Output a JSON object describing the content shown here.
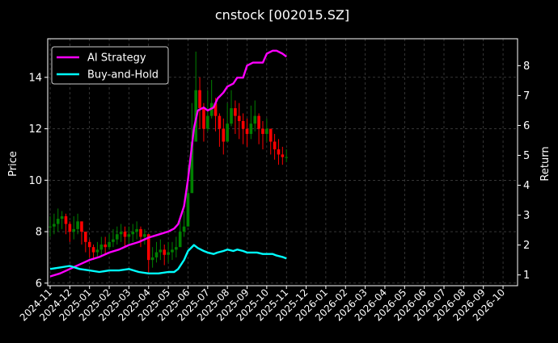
{
  "chart_data": {
    "type": "line",
    "title": "cnstock [002015.SZ]",
    "xlabel": "",
    "ylabel_left": "Price",
    "ylabel_right": "Return",
    "ylim_left": [
      5.9,
      15.5
    ],
    "ylim_right": [
      0.64,
      8.9
    ],
    "x_tick_labels": [
      "2024-11",
      "2024-12",
      "2025-01",
      "2025-02",
      "2025-03",
      "2025-04",
      "2025-05",
      "2025-06",
      "2025-07",
      "2025-08",
      "2025-09",
      "2025-10",
      "2025-11",
      "2025-12",
      "2026-01",
      "2026-02",
      "2026-03",
      "2026-04",
      "2026-05",
      "2026-06",
      "2026-07",
      "2026-08",
      "2026-09",
      "2026-10"
    ],
    "y_ticks_left": [
      6,
      8,
      10,
      12,
      14
    ],
    "y_ticks_right": [
      1,
      2,
      3,
      4,
      5,
      6,
      7,
      8
    ],
    "grid": true,
    "legend_placement": "top-left",
    "colors": {
      "background": "#000000",
      "ai_strategy": "#ff00ff",
      "buy_and_hold": "#00ffff",
      "candle_up": "#008000",
      "candle_down": "#ff0000",
      "grid": "#555555"
    },
    "candles": {
      "note_x": "month index (0 = 2024-11)",
      "x": [
        0.0,
        0.2,
        0.4,
        0.6,
        0.8,
        1.0,
        1.2,
        1.4,
        1.6,
        1.8,
        2.0,
        2.2,
        2.4,
        2.6,
        2.8,
        3.0,
        3.2,
        3.4,
        3.6,
        3.8,
        4.0,
        4.2,
        4.4,
        4.6,
        4.8,
        5.0,
        5.2,
        5.4,
        5.6,
        5.8,
        6.0,
        6.2,
        6.4,
        6.6,
        6.8,
        7.0,
        7.2,
        7.4,
        7.6,
        7.8,
        8.0,
        8.2,
        8.4,
        8.6,
        8.8,
        9.0,
        9.2,
        9.4,
        9.6,
        9.8,
        10.0,
        10.2,
        10.4,
        10.6,
        10.8,
        11.0,
        11.2,
        11.4,
        11.6,
        11.8,
        12.0
      ],
      "close": [
        8.2,
        8.3,
        8.5,
        8.6,
        8.3,
        8.0,
        8.1,
        8.4,
        8.0,
        7.6,
        7.4,
        7.2,
        7.3,
        7.5,
        7.4,
        7.6,
        7.7,
        7.9,
        8.0,
        7.8,
        7.9,
        8.0,
        8.1,
        7.8,
        7.9,
        6.9,
        7.0,
        7.2,
        7.3,
        7.1,
        7.2,
        7.3,
        7.4,
        8.0,
        8.2,
        9.5,
        11.5,
        13.5,
        12.8,
        12.0,
        12.5,
        13.0,
        12.5,
        12.0,
        11.5,
        12.2,
        12.8,
        12.5,
        12.3,
        12.0,
        11.8,
        12.2,
        12.5,
        12.0,
        11.8,
        12.0,
        11.5,
        11.2,
        11.0,
        10.9,
        10.9
      ],
      "high": [
        8.6,
        8.7,
        8.9,
        8.8,
        8.7,
        8.4,
        8.6,
        8.7,
        8.3,
        8.0,
        7.7,
        7.5,
        7.6,
        7.8,
        7.8,
        7.9,
        8.1,
        8.2,
        8.3,
        8.2,
        8.2,
        8.3,
        8.4,
        8.2,
        8.1,
        7.3,
        7.4,
        7.6,
        7.7,
        7.5,
        7.6,
        7.6,
        7.8,
        8.5,
        8.8,
        10.5,
        13.0,
        15.0,
        14.0,
        13.0,
        13.5,
        13.9,
        13.2,
        12.6,
        12.4,
        13.0,
        13.5,
        13.1,
        13.0,
        12.6,
        12.4,
        12.9,
        13.1,
        12.6,
        12.3,
        12.4,
        12.0,
        11.8,
        11.6,
        11.3,
        11.2
      ],
      "low": [
        7.8,
        7.9,
        8.0,
        8.1,
        7.9,
        7.6,
        7.7,
        7.9,
        7.5,
        7.2,
        7.0,
        6.9,
        7.0,
        7.1,
        7.1,
        7.3,
        7.4,
        7.5,
        7.6,
        7.4,
        7.5,
        7.6,
        7.7,
        7.4,
        7.5,
        6.4,
        6.6,
        6.8,
        6.9,
        6.7,
        6.8,
        6.9,
        7.0,
        7.6,
        7.8,
        8.9,
        10.8,
        12.6,
        12.0,
        11.5,
        11.9,
        12.4,
        11.9,
        11.3,
        11.0,
        11.6,
        12.1,
        11.8,
        11.6,
        11.4,
        11.3,
        11.6,
        11.9,
        11.4,
        11.2,
        11.5,
        11.0,
        10.8,
        10.6,
        10.6,
        10.7
      ]
    },
    "series": [
      {
        "name": "AI Strategy",
        "axis": "right",
        "x": [
          0.0,
          0.5,
          1.0,
          1.5,
          2.0,
          2.5,
          3.0,
          3.5,
          4.0,
          4.5,
          5.0,
          5.5,
          6.0,
          6.3,
          6.5,
          6.8,
          7.0,
          7.3,
          7.5,
          7.8,
          8.0,
          8.3,
          8.5,
          8.8,
          9.0,
          9.3,
          9.5,
          9.8,
          10.0,
          10.3,
          10.5,
          10.8,
          11.0,
          11.3,
          11.5,
          11.8,
          12.0
        ],
        "values": [
          0.95,
          1.05,
          1.2,
          1.35,
          1.5,
          1.6,
          1.75,
          1.85,
          2.0,
          2.1,
          2.25,
          2.35,
          2.45,
          2.55,
          2.7,
          3.3,
          4.2,
          5.9,
          6.5,
          6.6,
          6.5,
          6.6,
          6.9,
          7.1,
          7.3,
          7.4,
          7.6,
          7.6,
          8.0,
          8.1,
          8.1,
          8.1,
          8.4,
          8.5,
          8.5,
          8.4,
          8.3
        ]
      },
      {
        "name": "Buy-and-Hold",
        "axis": "right",
        "x": [
          0.0,
          0.5,
          1.0,
          1.5,
          2.0,
          2.5,
          3.0,
          3.5,
          4.0,
          4.5,
          5.0,
          5.5,
          6.0,
          6.3,
          6.5,
          6.8,
          7.0,
          7.3,
          7.5,
          7.8,
          8.0,
          8.3,
          8.5,
          8.8,
          9.0,
          9.3,
          9.5,
          9.8,
          10.0,
          10.3,
          10.5,
          10.8,
          11.0,
          11.3,
          11.5,
          11.8,
          12.0
        ],
        "values": [
          1.2,
          1.25,
          1.3,
          1.2,
          1.15,
          1.1,
          1.15,
          1.15,
          1.2,
          1.1,
          1.05,
          1.05,
          1.1,
          1.1,
          1.2,
          1.5,
          1.8,
          2.0,
          1.9,
          1.8,
          1.75,
          1.7,
          1.75,
          1.8,
          1.85,
          1.8,
          1.85,
          1.8,
          1.75,
          1.75,
          1.75,
          1.7,
          1.7,
          1.7,
          1.65,
          1.6,
          1.55
        ]
      }
    ]
  }
}
